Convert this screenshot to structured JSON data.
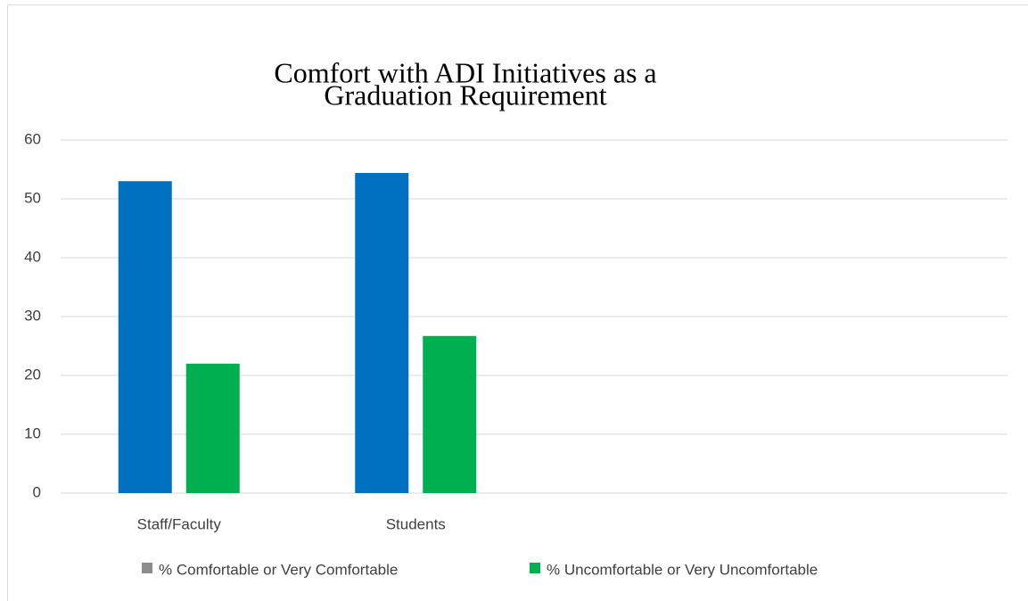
{
  "chart_data": {
    "type": "bar",
    "title": [
      "Comfort with ADI Initiatives as a",
      "Graduation  Requirement"
    ],
    "categories": [
      "Staff/Faculty",
      "Students",
      null,
      null
    ],
    "series": [
      {
        "name": "% Comfortable or Very Comfortable",
        "color": "#0070c0",
        "legend_color": "#8c8c8c",
        "values": [
          53,
          54.4,
          null,
          null
        ]
      },
      {
        "name": "% Uncomfortable or Very Uncomfortable",
        "color": "#00b050",
        "legend_color": "#00b050",
        "values": [
          22,
          26.7,
          null,
          null
        ]
      }
    ],
    "ylim": [
      0,
      60
    ],
    "yticks": [
      0,
      10,
      20,
      30,
      40,
      50,
      60
    ],
    "grid": true
  }
}
